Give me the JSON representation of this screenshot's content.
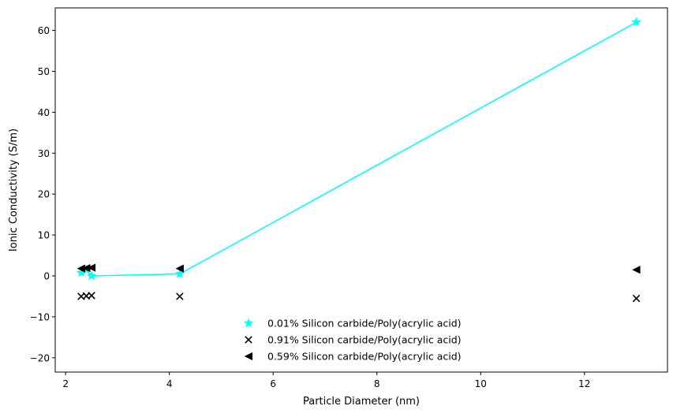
{
  "chart_data": {
    "type": "scatter",
    "title": "",
    "xlabel": "Particle Diameter (nm)",
    "ylabel": "Ionic Conductivity (S/m)",
    "xlim": [
      1.8,
      13.6
    ],
    "ylim": [
      -23.5,
      65.5
    ],
    "xticks": [
      2,
      4,
      6,
      8,
      10,
      12
    ],
    "yticks": [
      -20,
      -10,
      0,
      10,
      20,
      30,
      40,
      50,
      60
    ],
    "grid": false,
    "legend_position": "lower center",
    "series": [
      {
        "name": "0.01% Silicon carbide/Poly(acrylic acid)",
        "marker": "star",
        "color": "#00ffff",
        "connected": true,
        "x": [
          2.3,
          2.4,
          2.5,
          4.2,
          13.0
        ],
        "y": [
          0.8,
          1.5,
          0.0,
          0.5,
          62.0
        ]
      },
      {
        "name": "0.91% Silicon carbide/Poly(acrylic acid)",
        "marker": "x",
        "color": "#000000",
        "connected": false,
        "x": [
          2.3,
          2.4,
          2.5,
          4.2,
          13.0
        ],
        "y": [
          -5.0,
          -4.9,
          -4.8,
          -5.0,
          -5.5
        ]
      },
      {
        "name": "0.59% Silicon carbide/Poly(acrylic acid)",
        "marker": "triangle-left",
        "color": "#000000",
        "connected": false,
        "x": [
          2.3,
          2.4,
          2.5,
          4.2,
          13.0
        ],
        "y": [
          1.8,
          1.9,
          2.0,
          1.8,
          1.5
        ]
      }
    ]
  }
}
